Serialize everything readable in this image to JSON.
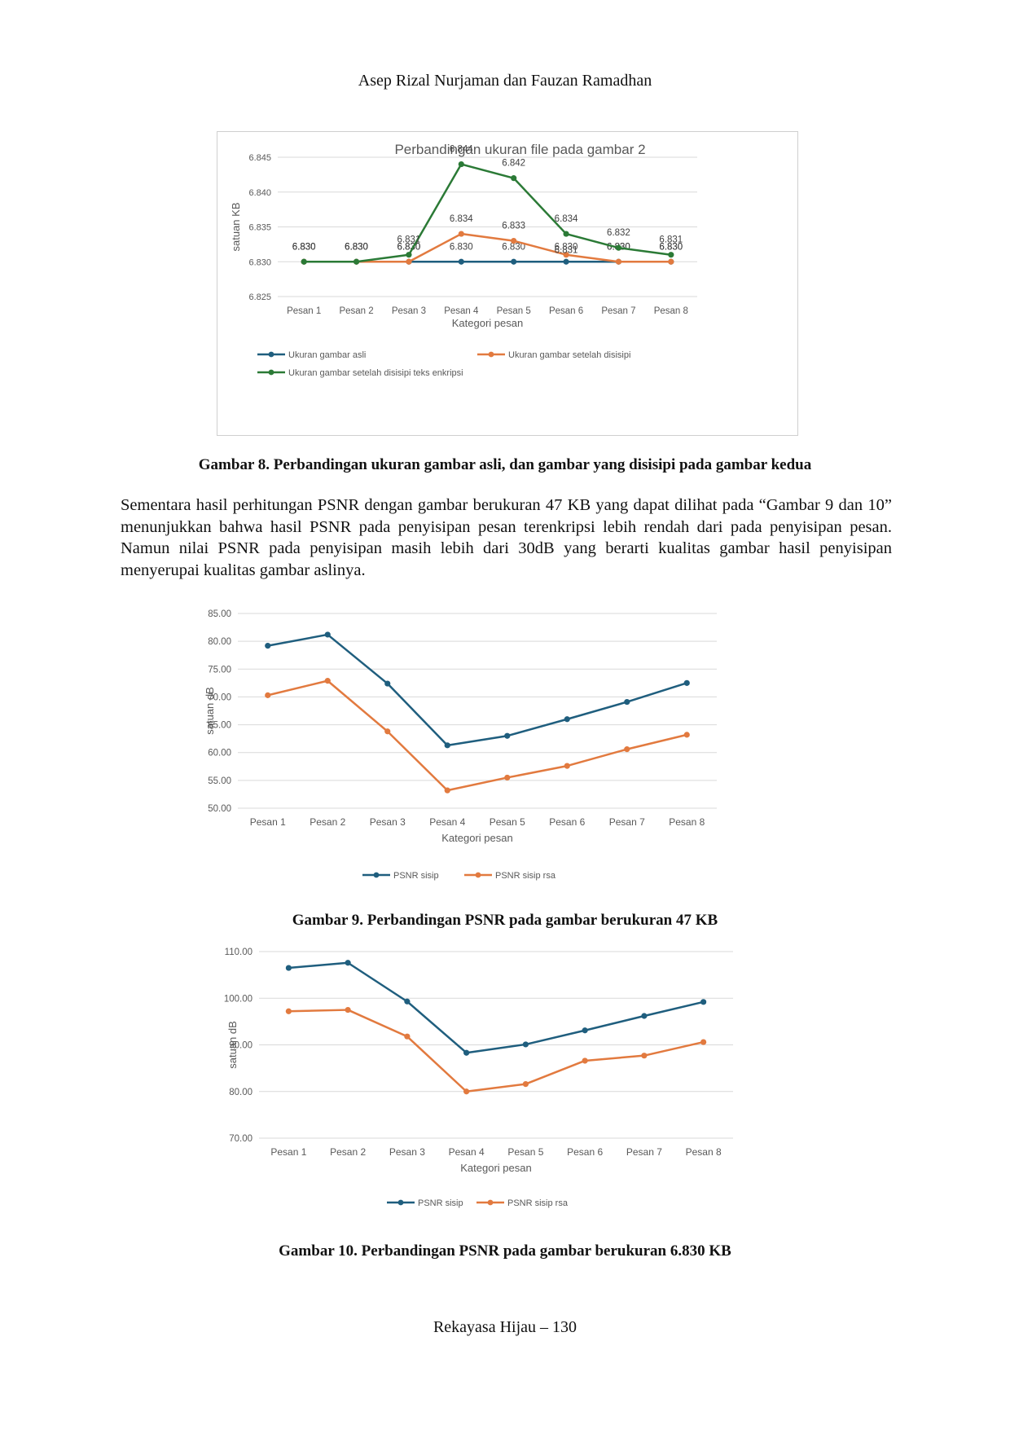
{
  "header": {
    "authors": "Asep Rizal Nurjaman dan Fauzan Ramadhan"
  },
  "figure8": {
    "caption": "Gambar 8. Perbandingan ukuran gambar asli, dan gambar yang disisipi pada gambar kedua"
  },
  "paragraph": "Sementara hasil perhitungan PSNR dengan gambar berukuran 47 KB yang dapat dilihat pada “Gambar 9 dan 10” menunjukkan bahwa hasil PSNR pada penyisipan pesan terenkripsi lebih rendah dari pada penyisipan pesan. Namun nilai PSNR pada penyisipan masih lebih dari 30dB yang berarti kualitas gambar hasil penyisipan menyerupai kualitas gambar aslinya.",
  "figure9": {
    "caption": "Gambar 9. Perbandingan PSNR pada gambar berukuran 47 KB"
  },
  "figure10": {
    "caption": "Gambar 10. Perbandingan PSNR pada gambar berukuran 6.830 KB"
  },
  "footer": {
    "page": "Rekayasa Hijau – 130"
  },
  "colors": {
    "blue": "#1f5e7e",
    "orange": "#e27a3f",
    "green": "#2b7a36",
    "grid": "#d9d9d9",
    "text": "#595959"
  },
  "chart_data": [
    {
      "type": "line",
      "title": "Perbandingan ukuran file pada gambar 2",
      "xlabel": "Kategori pesan",
      "ylabel": "satuan KB",
      "ylim": [
        6.825,
        6.845
      ],
      "yticks": [
        "6.825",
        "6.830",
        "6.835",
        "6.840",
        "6.845"
      ],
      "yticks_num": [
        6.825,
        6.83,
        6.835,
        6.84,
        6.845
      ],
      "categories": [
        "Pesan 1",
        "Pesan 2",
        "Pesan 3",
        "Pesan 4",
        "Pesan 5",
        "Pesan 6",
        "Pesan 7",
        "Pesan 8"
      ],
      "series": [
        {
          "name": "Ukuran gambar asli",
          "color": "#1f5e7e",
          "values": [
            6.83,
            6.83,
            6.83,
            6.83,
            6.83,
            6.83,
            6.83,
            6.83
          ],
          "labels": [
            "6.830",
            "6.830",
            "6.830",
            "6.830",
            "6.830",
            "6.830",
            "6.830",
            "6.830"
          ]
        },
        {
          "name": "Ukuran gambar setelah disisipi",
          "color": "#e27a3f",
          "values": [
            6.83,
            6.83,
            6.83,
            6.834,
            6.833,
            6.831,
            6.83,
            6.83
          ],
          "labels": [
            "6.830",
            "6.830",
            "6.830",
            "6.834",
            "6.833",
            "6.831",
            "6.830",
            "6.830"
          ]
        },
        {
          "name": "Ukuran gambar setelah disisipi teks enkripsi",
          "color": "#2b7a36",
          "values": [
            6.83,
            6.83,
            6.831,
            6.844,
            6.842,
            6.834,
            6.832,
            6.831
          ],
          "labels": [
            "6.830",
            "6.830",
            "6.831",
            "6.844",
            "6.842",
            "6.834",
            "6.832",
            "6.831"
          ]
        }
      ]
    },
    {
      "type": "line",
      "title": "",
      "xlabel": "Kategori pesan",
      "ylabel": "satuan dB",
      "ylim": [
        50,
        85
      ],
      "yticks": [
        "50.00",
        "55.00",
        "60.00",
        "65.00",
        "70.00",
        "75.00",
        "80.00",
        "85.00"
      ],
      "yticks_num": [
        50,
        55,
        60,
        65,
        70,
        75,
        80,
        85
      ],
      "categories": [
        "Pesan 1",
        "Pesan 2",
        "Pesan 3",
        "Pesan 4",
        "Pesan 5",
        "Pesan 6",
        "Pesan 7",
        "Pesan 8"
      ],
      "series": [
        {
          "name": "PSNR sisip",
          "color": "#1f5e7e",
          "values": [
            79.2,
            81.2,
            72.4,
            61.3,
            63.0,
            66.0,
            69.1,
            72.5
          ]
        },
        {
          "name": "PSNR sisip rsa",
          "color": "#e27a3f",
          "values": [
            70.3,
            72.9,
            63.8,
            53.2,
            55.5,
            57.6,
            60.6,
            63.2
          ]
        }
      ]
    },
    {
      "type": "line",
      "title": "",
      "xlabel": "Kategori pesan",
      "ylabel": "satuan dB",
      "ylim": [
        70,
        110
      ],
      "yticks": [
        "70.00",
        "80.00",
        "90.00",
        "100.00",
        "110.00"
      ],
      "yticks_num": [
        70,
        80,
        90,
        100,
        110
      ],
      "categories": [
        "Pesan 1",
        "Pesan 2",
        "Pesan 3",
        "Pesan 4",
        "Pesan 5",
        "Pesan 6",
        "Pesan 7",
        "Pesan 8"
      ],
      "series": [
        {
          "name": "PSNR sisip",
          "color": "#1f5e7e",
          "values": [
            106.5,
            107.6,
            99.3,
            88.3,
            90.1,
            93.1,
            96.2,
            99.2
          ]
        },
        {
          "name": "PSNR sisip rsa",
          "color": "#e27a3f",
          "values": [
            97.2,
            97.5,
            91.8,
            80.0,
            81.6,
            86.6,
            87.7,
            90.6
          ]
        }
      ]
    }
  ]
}
